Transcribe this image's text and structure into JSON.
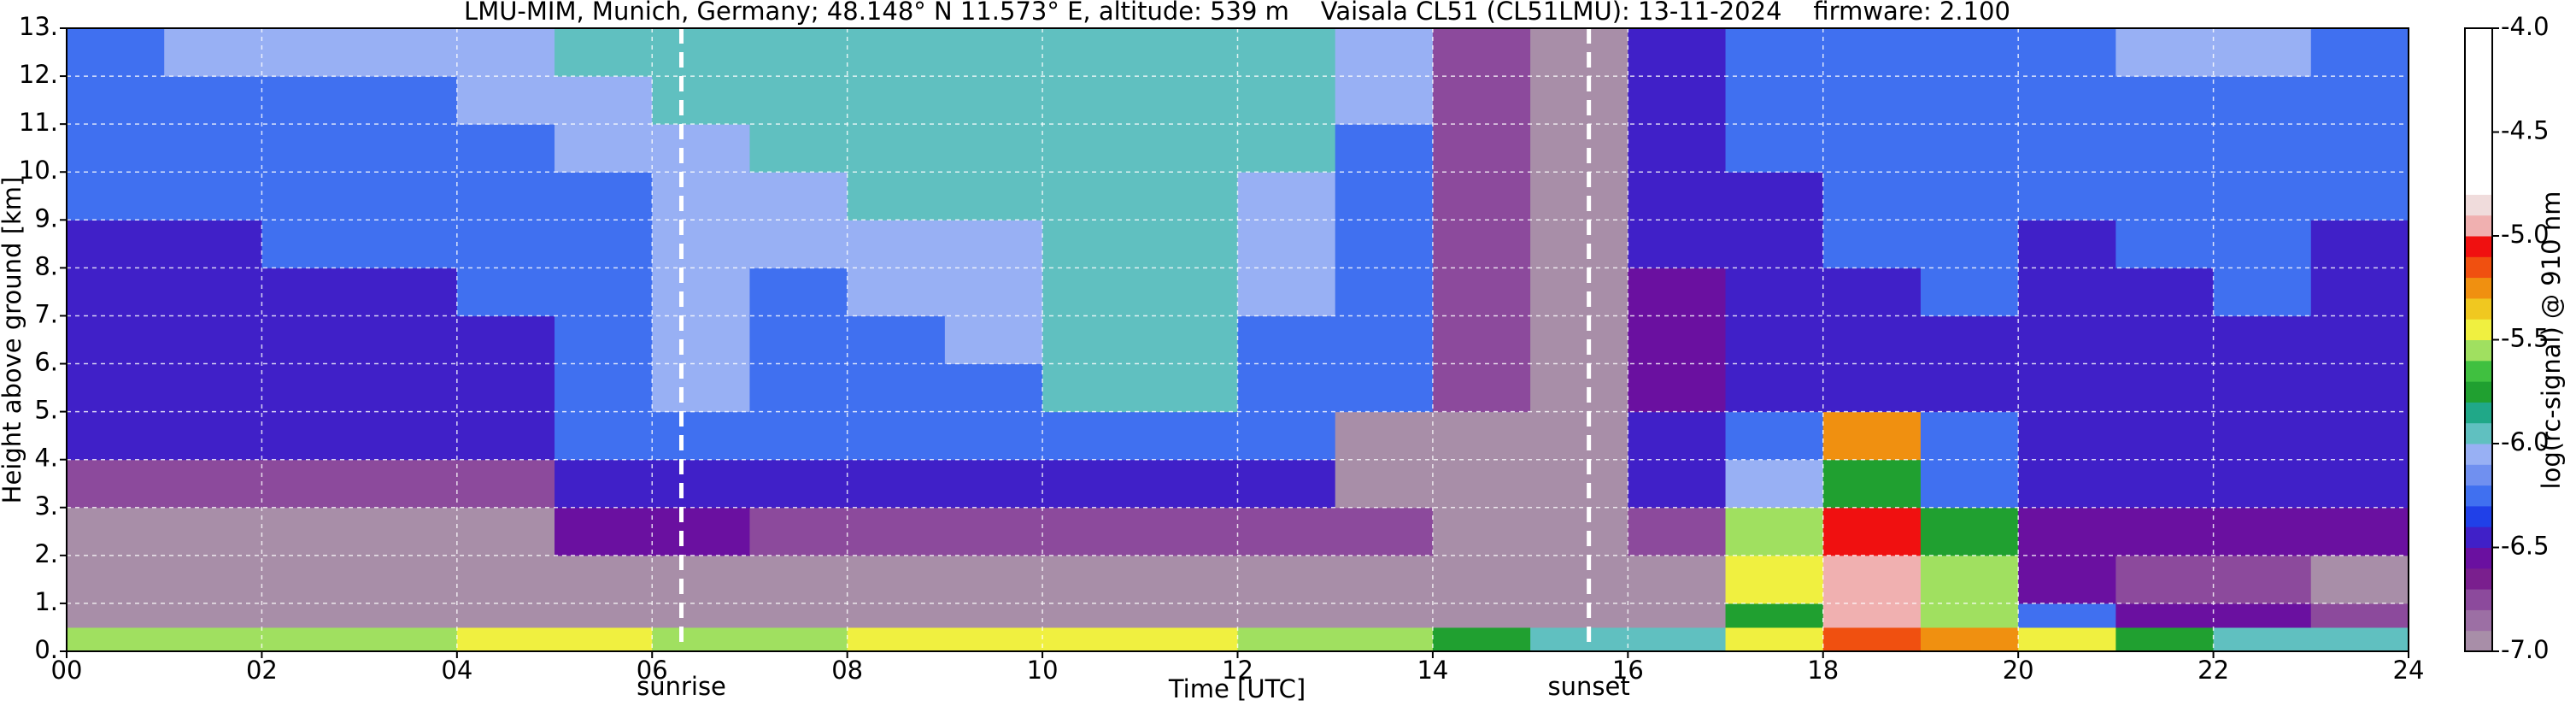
{
  "chart_data": {
    "type": "heatmap",
    "title": "LMU-MIM, Munich, Germany; 48.148° N 11.573° E, altitude: 539 m    Vaisala CL51 (CL51LMU): 13-11-2024    firmware: 2.100",
    "xlabel": "Time [UTC]",
    "ylabel": "Height above ground [km]",
    "colorbar_label": "log(rc-signal) @ 910 nm",
    "xbins": [
      0,
      1,
      2,
      3,
      4,
      5,
      6,
      7,
      8,
      9,
      10,
      11,
      12,
      13,
      14,
      15,
      16,
      17,
      18,
      19,
      20,
      21,
      22,
      23,
      24
    ],
    "ybins": [
      0,
      0.5,
      1,
      2,
      3,
      4,
      5,
      6,
      7,
      8,
      9,
      10,
      11,
      12,
      13
    ],
    "values": [
      [
        -5.6,
        -5.6,
        -5.6,
        -5.6,
        -5.5,
        -5.5,
        -5.6,
        -5.6,
        -5.5,
        -5.5,
        -5.4,
        -5.5,
        -5.6,
        -5.6,
        -5.8,
        -5.9,
        -6.0,
        -5.4,
        -5.2,
        -5.3,
        -5.5,
        -5.7,
        -5.9,
        -5.9
      ],
      [
        -7,
        -7,
        -7,
        -7,
        -7,
        -7,
        -7,
        -7,
        -7,
        -7,
        -7,
        -7,
        -7,
        -7,
        -7,
        -7,
        -7,
        -5.7,
        -5.0,
        -5.6,
        -6.2,
        -6.6,
        -6.6,
        -6.8
      ],
      [
        -7,
        -7,
        -7,
        -7,
        -7,
        -7,
        -7,
        -7,
        -7,
        -6.9,
        -6.9,
        -6.9,
        -7,
        -7,
        -7,
        -7,
        -7,
        -5.5,
        -5.0,
        -5.6,
        -6.6,
        -6.8,
        -6.7,
        -6.9
      ],
      [
        -6.9,
        -6.9,
        -6.9,
        -6.9,
        -6.9,
        -6.6,
        -6.6,
        -6.8,
        -6.8,
        -6.8,
        -6.8,
        -6.8,
        -6.8,
        -6.8,
        -7,
        -7,
        -6.8,
        -5.6,
        -5.1,
        -5.8,
        -6.6,
        -6.6,
        -6.6,
        -6.6
      ],
      [
        -6.7,
        -6.7,
        -6.7,
        -6.7,
        -6.7,
        -6.4,
        -6.4,
        -6.5,
        -6.5,
        -6.5,
        -6.5,
        -6.5,
        -6.5,
        -6.9,
        -6.9,
        -6.9,
        -6.5,
        -6.1,
        -5.8,
        -6.3,
        -6.5,
        -6.5,
        -6.5,
        -6.5
      ],
      [
        -6.5,
        -6.5,
        -6.5,
        -6.5,
        -6.5,
        -6.2,
        -6.2,
        -6.3,
        -6.3,
        -6.3,
        -6.3,
        -6.3,
        -6.3,
        -6.9,
        -6.9,
        -6.9,
        -6.4,
        -6.3,
        -5.3,
        -6.3,
        -6.4,
        -6.4,
        -6.4,
        -6.4
      ],
      [
        -6.5,
        -6.5,
        -6.5,
        -6.4,
        -6.4,
        -6.2,
        -6.1,
        -6.3,
        -6.2,
        -6.2,
        -6.0,
        -6.0,
        -6.2,
        -6.3,
        -6.8,
        -6.9,
        -6.6,
        -6.5,
        -6.4,
        -6.4,
        -6.5,
        -6.5,
        -6.4,
        -6.5
      ],
      [
        -6.5,
        -6.4,
        -6.5,
        -6.4,
        -6.4,
        -6.2,
        -6.1,
        -6.2,
        -6.2,
        -6.1,
        -6.0,
        -6.0,
        -6.2,
        -6.3,
        -6.8,
        -6.9,
        -6.6,
        -6.5,
        -6.4,
        -6.4,
        -6.5,
        -6.4,
        -6.4,
        -6.5
      ],
      [
        -6.4,
        -6.4,
        -6.4,
        -6.4,
        -6.3,
        -6.2,
        -6.1,
        -6.2,
        -6.1,
        -6.1,
        -6.0,
        -6.0,
        -6.1,
        -6.3,
        -6.8,
        -6.9,
        -6.6,
        -6.4,
        -6.4,
        -6.3,
        -6.4,
        -6.4,
        -6.3,
        -6.4
      ],
      [
        -6.4,
        -6.4,
        -6.3,
        -6.3,
        -6.3,
        -6.2,
        -6.1,
        -6.1,
        -6.1,
        -6.1,
        -6.0,
        -6.0,
        -6.1,
        -6.2,
        -6.8,
        -6.9,
        -6.5,
        -6.4,
        -6.3,
        -6.3,
        -6.4,
        -6.3,
        -6.3,
        -6.4
      ],
      [
        -6.3,
        -6.3,
        -6.3,
        -6.3,
        -6.2,
        -6.2,
        -6.1,
        -6.1,
        -6.0,
        -6.0,
        -6.0,
        -6.0,
        -6.1,
        -6.2,
        -6.8,
        -6.9,
        -6.5,
        -6.4,
        -6.3,
        -6.3,
        -6.3,
        -6.3,
        -6.3,
        -6.3
      ],
      [
        -6.3,
        -6.2,
        -6.2,
        -6.2,
        -6.2,
        -6.1,
        -6.1,
        -6.0,
        -6.0,
        -6.0,
        -5.9,
        -5.9,
        -6.0,
        -6.2,
        -6.8,
        -6.9,
        -6.5,
        -6.3,
        -6.3,
        -6.2,
        -6.3,
        -6.2,
        -6.2,
        -6.3
      ],
      [
        -6.2,
        -6.2,
        -6.2,
        -6.2,
        -6.1,
        -6.1,
        -6.0,
        -6.0,
        -6.0,
        -5.9,
        -5.9,
        -5.9,
        -6.0,
        -6.1,
        -6.8,
        -6.9,
        -6.5,
        -6.3,
        -6.2,
        -6.2,
        -6.2,
        -6.2,
        -6.2,
        -6.2
      ],
      [
        -6.2,
        -6.1,
        -6.1,
        -6.1,
        -6.1,
        -6.0,
        -6.0,
        -6.0,
        -5.9,
        -5.9,
        -5.9,
        -5.9,
        -6.0,
        -6.1,
        -6.8,
        -6.9,
        -6.4,
        -6.3,
        -6.2,
        -6.2,
        -6.2,
        -6.1,
        -6.1,
        -6.2
      ]
    ],
    "xlim": [
      0,
      24
    ],
    "ylim": [
      0,
      13
    ],
    "zlim": [
      -7,
      -4
    ],
    "xticks": [
      {
        "value": 0,
        "label": "00"
      },
      {
        "value": 2,
        "label": "02"
      },
      {
        "value": 4,
        "label": "04"
      },
      {
        "value": 6,
        "label": "06"
      },
      {
        "value": 8,
        "label": "08"
      },
      10,
      12,
      14,
      16,
      18,
      20,
      22,
      24
    ],
    "yticks": [
      {
        "value": 0,
        "label": "0."
      },
      {
        "value": 1,
        "label": "1."
      },
      {
        "value": 2,
        "label": "2."
      },
      {
        "value": 3,
        "label": "3."
      },
      {
        "value": 4,
        "label": "4."
      },
      {
        "value": 5,
        "label": "5."
      },
      {
        "value": 6,
        "label": "6."
      },
      {
        "value": 7,
        "label": "7."
      },
      {
        "value": 8,
        "label": "8."
      },
      {
        "value": 9,
        "label": "9."
      },
      {
        "value": 10,
        "label": "10."
      },
      {
        "value": 11,
        "label": "11."
      },
      {
        "value": 12,
        "label": "12."
      },
      {
        "value": 13,
        "label": "13."
      }
    ],
    "zticks": [
      {
        "value": -7,
        "label": "-7.0"
      },
      {
        "value": -6.5,
        "label": "-6.5"
      },
      {
        "value": -6,
        "label": "-6.0"
      },
      {
        "value": -5.5,
        "label": "-5.5"
      },
      {
        "value": -5,
        "label": "-5.0"
      },
      {
        "value": -4.5,
        "label": "-4.5"
      },
      {
        "value": -4,
        "label": "-4.0"
      }
    ],
    "colormap": [
      "#a88ea8",
      "#9c6fa4",
      "#8c4a9c",
      "#7a1f8e",
      "#6a10a0",
      "#4020c8",
      "#2040e8",
      "#4070f0",
      "#7090f0",
      "#98b0f4",
      "#60c0c0",
      "#20a888",
      "#20a030",
      "#40c040",
      "#a0e060",
      "#f0f040",
      "#f0c820",
      "#f09010",
      "#f05010",
      "#f01010",
      "#f0b0b0",
      "#f0dcdc",
      "#ffffff",
      "#ffffff",
      "#ffffff",
      "#ffffff",
      "#ffffff",
      "#ffffff",
      "#ffffff",
      "#ffffff"
    ],
    "grid": true,
    "vlines": [
      {
        "x": 6.3,
        "label": "sunrise"
      },
      {
        "x": 15.6,
        "label": "sunset"
      }
    ]
  }
}
